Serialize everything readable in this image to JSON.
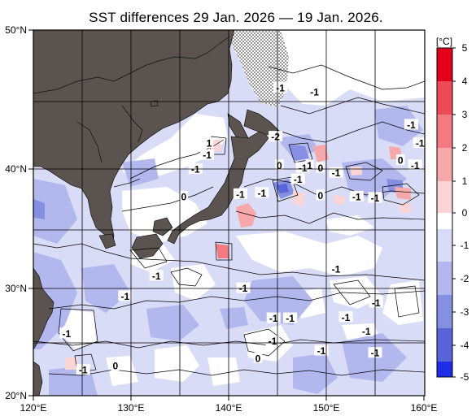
{
  "title": "SST differences 29 Jan. 2026 — 19 Jan. 2026.",
  "lat_labels": [
    "50°N",
    "40°N",
    "30°N",
    "20°N"
  ],
  "lon_labels": [
    "120°E",
    "130°E",
    "140°E",
    "150°E",
    "160°E"
  ],
  "colorbar": {
    "unit": "[°C]",
    "ticks": [
      "5",
      "4",
      "3",
      "2",
      "1",
      "0",
      "-1",
      "-2",
      "-3",
      "-4",
      "-5"
    ],
    "colors": {
      "plus5": "#e0001b",
      "plus4": "#ec4a55",
      "plus3": "#f27a80",
      "plus2": "#f7a8ab",
      "plus1": "#fbd5d6",
      "zero": "#ffffff",
      "minus1": "#d9dcf6",
      "minus2": "#b2b8ee",
      "minus3": "#8590e2",
      "minus4": "#5864d8",
      "minus5": "#1d2ee6"
    }
  },
  "land_color": "#5a5350",
  "contour_labels": [
    {
      "text": "-1",
      "lon": 145.3,
      "lat": 46.0
    },
    {
      "text": "-1",
      "lon": 148.8,
      "lat": 45.7
    },
    {
      "text": "-2",
      "lon": 144.8,
      "lat": 42.4
    },
    {
      "text": "1",
      "lon": 138.0,
      "lat": 41.9
    },
    {
      "text": "-1",
      "lon": 137.8,
      "lat": 41.0
    },
    {
      "text": "-1",
      "lon": 136.6,
      "lat": 39.9
    },
    {
      "text": "0",
      "lon": 135.4,
      "lat": 37.7
    },
    {
      "text": "0",
      "lon": 145.2,
      "lat": 40.2
    },
    {
      "text": "-1",
      "lon": 147.6,
      "lat": 40.0
    },
    {
      "text": "1",
      "lon": 148.3,
      "lat": 40.2
    },
    {
      "text": "0",
      "lon": 149.4,
      "lat": 40.0
    },
    {
      "text": "-1",
      "lon": 151.0,
      "lat": 39.6
    },
    {
      "text": "-1",
      "lon": 147.1,
      "lat": 39.1
    },
    {
      "text": "-1",
      "lon": 141.2,
      "lat": 37.9
    },
    {
      "text": "-1",
      "lon": 143.4,
      "lat": 38.0
    },
    {
      "text": "0",
      "lon": 149.4,
      "lat": 37.8
    },
    {
      "text": "-1",
      "lon": 153.1,
      "lat": 37.7
    },
    {
      "text": "-1",
      "lon": 155.0,
      "lat": 37.6
    },
    {
      "text": "-1",
      "lon": 158.7,
      "lat": 43.3
    },
    {
      "text": "-1",
      "lon": 159.6,
      "lat": 41.9
    },
    {
      "text": "0",
      "lon": 157.6,
      "lat": 40.6
    },
    {
      "text": "-1",
      "lon": 159.1,
      "lat": 40.2
    },
    {
      "text": "-1",
      "lon": 151.0,
      "lat": 31.6
    },
    {
      "text": "-1",
      "lon": 132.6,
      "lat": 31.0
    },
    {
      "text": "-1",
      "lon": 129.4,
      "lat": 29.2
    },
    {
      "text": "-1",
      "lon": 141.5,
      "lat": 29.9
    },
    {
      "text": "-1",
      "lon": 155.1,
      "lat": 28.6
    },
    {
      "text": "-1",
      "lon": 152.0,
      "lat": 27.3
    },
    {
      "text": "-1",
      "lon": 144.6,
      "lat": 27.2
    },
    {
      "text": "-1",
      "lon": 146.3,
      "lat": 27.2
    },
    {
      "text": "-1",
      "lon": 154.1,
      "lat": 26.0
    },
    {
      "text": "-1",
      "lon": 144.5,
      "lat": 25.1
    },
    {
      "text": "-1",
      "lon": 123.4,
      "lat": 25.8
    },
    {
      "text": "-1",
      "lon": 149.5,
      "lat": 24.2
    },
    {
      "text": "-1",
      "lon": 155.0,
      "lat": 24.0
    },
    {
      "text": "0",
      "lon": 143.0,
      "lat": 23.5
    },
    {
      "text": "0",
      "lon": 128.4,
      "lat": 22.8
    },
    {
      "text": "-1",
      "lon": 125.1,
      "lat": 22.4
    }
  ]
}
